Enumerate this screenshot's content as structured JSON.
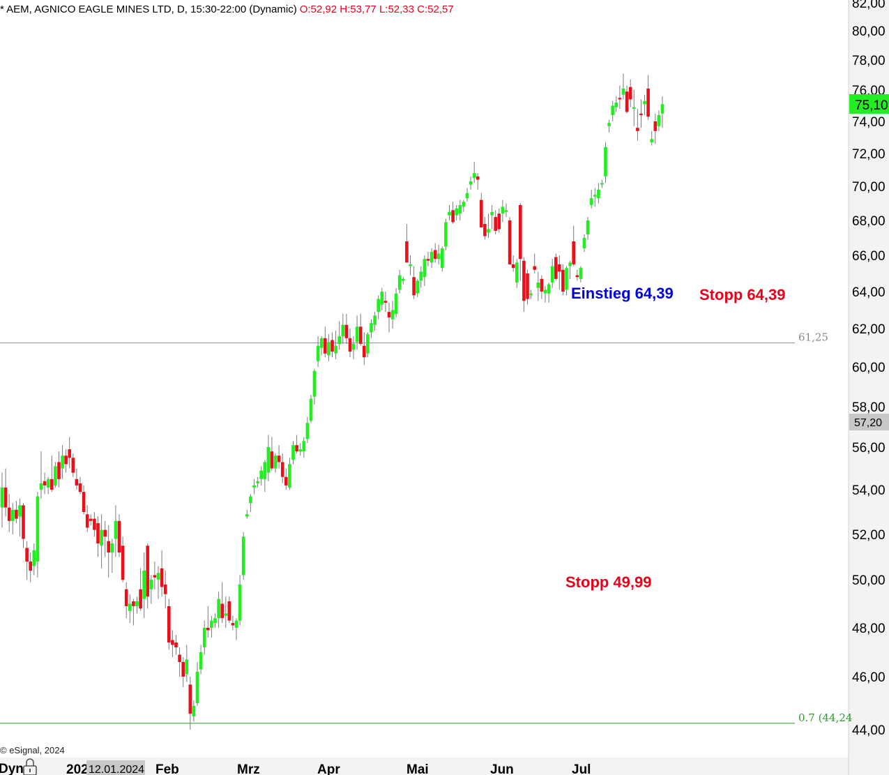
{
  "header": {
    "symbol_text": "* AEM, AGNICO EAGLE MINES LTD, D, 15:30-22:00 (Dynamic)",
    "ohlc_text": "O:52,92 H:53,77 L:52,33 C:52,57"
  },
  "footer": {
    "copyright": "© eSignal, 2024",
    "mode_label": "Dyn",
    "date_box": "12.01.2024",
    "year_fragment": "202"
  },
  "colors": {
    "up": "#22ee22",
    "down": "#e8101a",
    "level_line": "#888888",
    "fib_line": "#2a9a2a",
    "blue_text": "#0000dd",
    "red_text": "#e8001a",
    "last_price_bg": "#22ee22",
    "crosshair_bg": "#c8c8c8",
    "axis_bg": "#f3f3f3"
  },
  "chart_data": {
    "type": "candlestick",
    "title": "AEM, AGNICO EAGLE MINES LTD, D",
    "y_ticks": [
      "44,00",
      "46,00",
      "48,00",
      "50,00",
      "52,00",
      "54,00",
      "56,00",
      "58,00",
      "60,00",
      "62,00",
      "64,00",
      "66,00",
      "68,00",
      "70,00",
      "72,00",
      "74,00",
      "76,00",
      "78,00",
      "80,00",
      "82,00"
    ],
    "x_ticks": [
      "Feb",
      "Mrz",
      "Apr",
      "Mai",
      "Jun",
      "Jul"
    ],
    "ylim": [
      43.4,
      82.2
    ],
    "last_price": "75,10",
    "crosshair_price": "57,20",
    "horizontal_levels": [
      {
        "label": "61,25",
        "value": 61.25
      },
      {
        "label": "0.7 (44,24",
        "value": 44.24
      }
    ],
    "annotations": {
      "entry": "Einstieg 64,39",
      "stop_upper": "Stopp 64,39",
      "stop_lower": "Stopp 49,99"
    },
    "candles": [
      [
        53.2,
        54.8,
        52.3,
        54.1
      ],
      [
        54.1,
        55.0,
        52.8,
        53.2
      ],
      [
        53.2,
        53.8,
        52.1,
        52.6
      ],
      [
        52.6,
        53.4,
        52.0,
        53.1
      ],
      [
        53.1,
        53.5,
        52.5,
        52.7
      ],
      [
        52.8,
        53.6,
        51.9,
        53.3
      ],
      [
        53.3,
        53.4,
        51.4,
        51.8
      ],
      [
        51.4,
        51.7,
        50.0,
        50.8
      ],
      [
        50.8,
        51.2,
        49.9,
        50.4
      ],
      [
        50.6,
        51.6,
        50.2,
        51.3
      ],
      [
        50.8,
        53.9,
        50.1,
        53.7
      ],
      [
        54.0,
        55.8,
        53.6,
        54.3
      ],
      [
        54.4,
        54.8,
        53.8,
        54.2
      ],
      [
        54.1,
        54.6,
        53.8,
        54.5
      ],
      [
        54.5,
        55.6,
        53.9,
        54.0
      ],
      [
        54.2,
        55.3,
        54.1,
        55.1
      ],
      [
        55.3,
        55.8,
        54.1,
        54.5
      ],
      [
        55.0,
        56.1,
        54.5,
        55.6
      ],
      [
        55.6,
        55.9,
        54.8,
        55.2
      ],
      [
        55.9,
        56.5,
        55.0,
        55.5
      ],
      [
        55.5,
        55.7,
        54.6,
        54.8
      ],
      [
        54.5,
        55.0,
        54.0,
        54.2
      ],
      [
        54.3,
        54.6,
        53.8,
        53.9
      ],
      [
        53.9,
        54.2,
        52.9,
        53.0
      ],
      [
        52.9,
        53.3,
        52.1,
        52.3
      ],
      [
        52.7,
        52.9,
        52.4,
        52.6
      ],
      [
        52.7,
        53.0,
        51.9,
        52.2
      ],
      [
        52.5,
        52.8,
        51.0,
        51.6
      ],
      [
        51.5,
        52.9,
        50.5,
        52.2
      ],
      [
        52.2,
        52.6,
        51.0,
        51.9
      ],
      [
        51.7,
        52.4,
        50.1,
        51.2
      ],
      [
        51.2,
        51.8,
        50.3,
        51.6
      ],
      [
        51.8,
        53.3,
        51.0,
        52.6
      ],
      [
        52.6,
        52.9,
        51.0,
        51.2
      ],
      [
        51.5,
        51.9,
        49.9,
        50.0
      ],
      [
        49.6,
        49.9,
        48.4,
        48.9
      ],
      [
        48.7,
        49.4,
        48.2,
        49.0
      ],
      [
        49.1,
        49.2,
        48.1,
        48.9
      ],
      [
        48.9,
        49.3,
        48.6,
        49.1
      ],
      [
        49.6,
        50.5,
        48.7,
        48.8
      ],
      [
        49.2,
        51.2,
        48.4,
        50.4
      ],
      [
        51.5,
        51.6,
        48.8,
        49.3
      ],
      [
        49.6,
        50.2,
        49.0,
        50.0
      ],
      [
        50.2,
        50.8,
        49.6,
        50.1
      ],
      [
        50.0,
        50.6,
        49.2,
        50.3
      ],
      [
        50.5,
        51.3,
        49.3,
        49.7
      ],
      [
        49.8,
        50.4,
        48.8,
        49.4
      ],
      [
        48.9,
        49.2,
        47.1,
        47.4
      ],
      [
        47.5,
        47.9,
        46.8,
        47.3
      ],
      [
        47.4,
        47.7,
        46.9,
        47.2
      ],
      [
        46.9,
        47.2,
        46.0,
        46.6
      ],
      [
        46.6,
        46.8,
        45.6,
        46.0
      ],
      [
        46.1,
        47.3,
        45.8,
        46.7
      ],
      [
        45.7,
        46.0,
        44.0,
        44.6
      ],
      [
        44.5,
        45.1,
        44.3,
        44.9
      ],
      [
        45.0,
        46.6,
        44.9,
        46.2
      ],
      [
        46.3,
        47.3,
        46.1,
        47.0
      ],
      [
        47.2,
        48.3,
        46.9,
        48.0
      ],
      [
        48.0,
        48.9,
        47.6,
        47.9
      ],
      [
        48.0,
        48.5,
        47.6,
        48.3
      ],
      [
        48.2,
        48.6,
        48.0,
        48.4
      ],
      [
        48.4,
        49.5,
        48.0,
        49.2
      ],
      [
        49.0,
        49.9,
        48.2,
        48.4
      ],
      [
        48.5,
        49.3,
        48.0,
        48.6
      ],
      [
        49.1,
        49.3,
        48.2,
        48.3
      ],
      [
        48.2,
        48.5,
        47.9,
        48.1
      ],
      [
        48.0,
        48.4,
        47.5,
        48.3
      ],
      [
        48.3,
        50.2,
        48.1,
        49.8
      ],
      [
        50.2,
        52.1,
        50.0,
        51.9
      ],
      [
        52.8,
        53.1,
        52.7,
        52.9
      ],
      [
        53.4,
        53.8,
        53.0,
        53.7
      ],
      [
        54.1,
        54.5,
        53.8,
        54.2
      ],
      [
        54.3,
        54.6,
        54.1,
        54.4
      ],
      [
        54.5,
        55.1,
        54.2,
        54.9
      ],
      [
        54.5,
        55.4,
        53.9,
        55.3
      ],
      [
        54.8,
        56.6,
        54.4,
        56.0
      ],
      [
        55.8,
        56.5,
        54.9,
        55.0
      ],
      [
        55.0,
        55.7,
        54.8,
        55.6
      ],
      [
        55.6,
        56.1,
        55.0,
        55.3
      ],
      [
        55.3,
        55.7,
        54.3,
        54.6
      ],
      [
        54.6,
        55.0,
        54.0,
        54.2
      ],
      [
        54.1,
        55.5,
        54.0,
        55.2
      ],
      [
        55.4,
        56.3,
        55.2,
        56.1
      ],
      [
        56.1,
        56.6,
        55.7,
        55.8
      ],
      [
        55.8,
        56.2,
        55.6,
        55.9
      ],
      [
        55.8,
        56.5,
        55.5,
        56.3
      ],
      [
        56.4,
        57.5,
        56.2,
        57.2
      ],
      [
        57.3,
        58.6,
        57.2,
        58.4
      ],
      [
        58.5,
        59.9,
        58.1,
        59.8
      ],
      [
        60.3,
        61.6,
        60.0,
        61.1
      ],
      [
        61.0,
        61.6,
        60.6,
        61.5
      ],
      [
        61.5,
        62.1,
        60.5,
        60.7
      ],
      [
        60.6,
        61.7,
        60.3,
        61.3
      ],
      [
        61.4,
        61.8,
        60.5,
        60.8
      ],
      [
        60.7,
        61.9,
        60.4,
        61.1
      ],
      [
        61.2,
        62.4,
        60.9,
        61.6
      ],
      [
        61.6,
        62.8,
        61.2,
        62.2
      ],
      [
        62.2,
        62.8,
        61.2,
        61.5
      ],
      [
        61.5,
        62.0,
        60.5,
        60.8
      ],
      [
        60.9,
        61.6,
        60.4,
        61.2
      ],
      [
        61.3,
        62.7,
        60.9,
        62.1
      ],
      [
        62.1,
        62.8,
        61.1,
        61.2
      ],
      [
        61.1,
        61.8,
        60.1,
        60.5
      ],
      [
        60.7,
        61.8,
        60.5,
        61.7
      ],
      [
        61.8,
        62.5,
        61.5,
        62.3
      ],
      [
        62.2,
        62.9,
        61.9,
        62.7
      ],
      [
        62.9,
        63.8,
        62.5,
        63.6
      ],
      [
        63.3,
        64.2,
        63.0,
        64.0
      ],
      [
        63.5,
        64.0,
        62.9,
        63.4
      ],
      [
        62.9,
        63.4,
        61.8,
        62.6
      ],
      [
        62.5,
        63.5,
        62.0,
        63.0
      ],
      [
        62.8,
        64.2,
        62.6,
        63.9
      ],
      [
        64.1,
        65.2,
        63.9,
        64.9
      ],
      [
        64.6,
        64.8,
        64.4,
        64.7
      ],
      [
        66.8,
        67.8,
        65.6,
        65.6
      ],
      [
        65.4,
        66.0,
        64.9,
        65.5
      ],
      [
        64.8,
        65.4,
        63.6,
        63.8
      ],
      [
        63.9,
        64.7,
        63.7,
        64.6
      ],
      [
        64.6,
        65.4,
        64.2,
        65.1
      ],
      [
        64.8,
        66.0,
        64.3,
        65.8
      ],
      [
        65.8,
        66.2,
        65.4,
        65.7
      ],
      [
        65.6,
        66.4,
        65.3,
        66.2
      ],
      [
        66.3,
        66.7,
        65.6,
        65.8
      ],
      [
        65.8,
        66.6,
        65.5,
        66.1
      ],
      [
        65.3,
        66.5,
        65.1,
        66.4
      ],
      [
        66.5,
        68.1,
        66.3,
        67.9
      ],
      [
        68.3,
        68.9,
        68.0,
        68.5
      ],
      [
        68.6,
        69.1,
        67.8,
        67.9
      ],
      [
        68.3,
        68.9,
        68.0,
        68.7
      ],
      [
        68.4,
        69.2,
        68.0,
        68.9
      ],
      [
        68.8,
        69.2,
        68.5,
        69.1
      ],
      [
        69.3,
        69.9,
        69.1,
        69.6
      ],
      [
        70.1,
        70.6,
        69.8,
        70.3
      ],
      [
        70.5,
        71.5,
        70.2,
        70.8
      ],
      [
        70.6,
        70.8,
        69.8,
        70.4
      ],
      [
        69.2,
        69.6,
        67.6,
        67.6
      ],
      [
        67.8,
        68.2,
        66.9,
        67.1
      ],
      [
        67.3,
        68.4,
        67.0,
        67.5
      ],
      [
        68.3,
        68.9,
        67.5,
        68.5
      ],
      [
        68.2,
        68.6,
        67.2,
        67.4
      ],
      [
        68.4,
        68.7,
        67.3,
        67.5
      ],
      [
        68.4,
        69.2,
        67.9,
        68.8
      ],
      [
        68.5,
        69.0,
        68.2,
        68.6
      ],
      [
        68.0,
        68.2,
        65.5,
        65.5
      ],
      [
        65.5,
        66.0,
        65.1,
        65.3
      ],
      [
        64.5,
        65.8,
        64.2,
        65.6
      ],
      [
        68.9,
        69.0,
        64.6,
        65.8
      ],
      [
        65.7,
        65.9,
        62.9,
        63.5
      ],
      [
        65.0,
        65.2,
        63.3,
        63.6
      ],
      [
        63.8,
        64.1,
        63.6,
        63.9
      ],
      [
        65.4,
        66.1,
        65.0,
        65.2
      ],
      [
        64.2,
        65.1,
        63.5,
        64.5
      ],
      [
        64.7,
        64.9,
        63.6,
        64.0
      ],
      [
        63.9,
        64.3,
        63.4,
        64.1
      ],
      [
        63.9,
        64.5,
        63.4,
        64.4
      ],
      [
        64.5,
        65.8,
        64.2,
        65.4
      ],
      [
        65.9,
        66.1,
        64.6,
        64.7
      ],
      [
        65.5,
        66.0,
        64.1,
        65.1
      ],
      [
        65.2,
        65.5,
        63.8,
        64.0
      ],
      [
        64.1,
        65.4,
        63.8,
        65.3
      ],
      [
        65.4,
        65.7,
        64.7,
        65.6
      ],
      [
        66.8,
        67.7,
        65.4,
        65.5
      ],
      [
        64.9,
        65.2,
        64.6,
        64.8
      ],
      [
        64.7,
        65.4,
        64.5,
        65.3
      ],
      [
        66.4,
        67.2,
        66.2,
        67.0
      ],
      [
        67.2,
        68.2,
        66.9,
        68.0
      ],
      [
        68.9,
        69.8,
        68.7,
        69.3
      ],
      [
        69.4,
        69.9,
        68.8,
        69.5
      ],
      [
        69.3,
        70.2,
        69.0,
        69.8
      ],
      [
        70.1,
        70.4,
        69.9,
        70.2
      ],
      [
        70.6,
        72.7,
        70.2,
        72.4
      ],
      [
        73.7,
        74.1,
        73.3,
        73.9
      ],
      [
        74.4,
        75.3,
        74.0,
        75.0
      ],
      [
        74.9,
        75.6,
        74.6,
        75.2
      ],
      [
        75.5,
        76.3,
        74.8,
        75.4
      ],
      [
        75.7,
        77.1,
        75.4,
        76.1
      ],
      [
        75.9,
        76.3,
        74.5,
        74.6
      ],
      [
        76.2,
        76.7,
        74.9,
        75.4
      ],
      [
        74.8,
        76.0,
        73.7,
        74.9
      ],
      [
        73.6,
        74.8,
        72.8,
        73.4
      ],
      [
        74.5,
        75.4,
        73.6,
        74.4
      ],
      [
        75.1,
        75.7,
        74.4,
        75.3
      ],
      [
        76.1,
        77.0,
        74.1,
        74.3
      ],
      [
        72.7,
        73.4,
        72.5,
        72.9
      ],
      [
        74.0,
        74.5,
        72.6,
        73.4
      ],
      [
        73.7,
        74.7,
        73.4,
        74.4
      ],
      [
        74.5,
        75.6,
        73.6,
        75.1
      ]
    ]
  }
}
